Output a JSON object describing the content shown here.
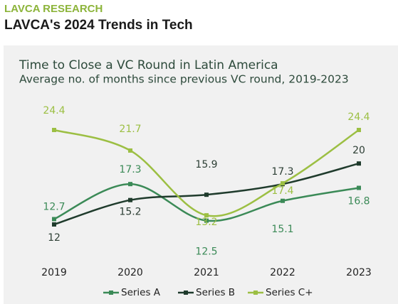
{
  "header": {
    "kicker": "LAVCA RESEARCH",
    "title": "LAVCA's 2024 Trends in Tech"
  },
  "chart_data": {
    "type": "line",
    "title": "Time to Close a VC Round in Latin America",
    "subtitle": "Average no. of months since previous VC round, 2019-2023",
    "categories": [
      "2019",
      "2020",
      "2021",
      "2022",
      "2023"
    ],
    "series": [
      {
        "name": "Series A",
        "color": "#3b8a57",
        "values": [
          12.7,
          17.3,
          12.5,
          15.1,
          16.8
        ]
      },
      {
        "name": "Series B",
        "color": "#1f3b2c",
        "values": [
          12.0,
          15.2,
          15.9,
          17.3,
          20.0
        ]
      },
      {
        "name": "Series C+",
        "color": "#9cbf43",
        "values": [
          24.4,
          21.7,
          13.2,
          17.4,
          24.4
        ]
      }
    ],
    "legend": "bottom"
  }
}
